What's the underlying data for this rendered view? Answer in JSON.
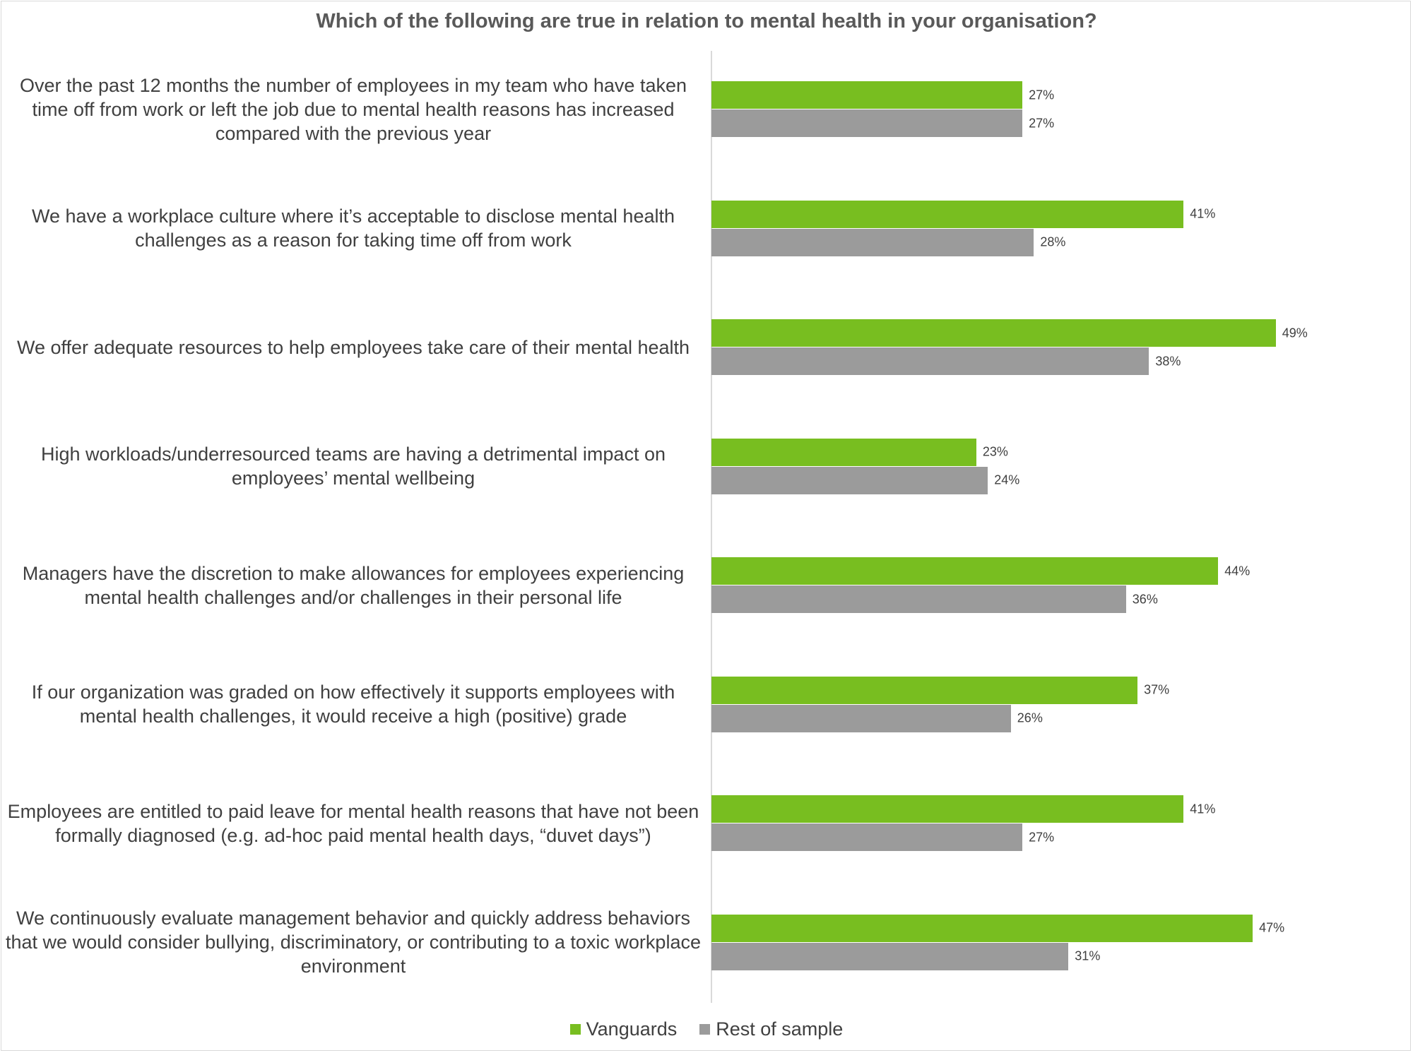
{
  "chart_data": {
    "type": "bar",
    "orientation": "horizontal",
    "title": "Which of the following are true in relation to mental health in your organisation?",
    "categories": [
      "Over the past 12 months the number of employees in my team who have taken time off from work or left the job due to mental health reasons has increased compared with the previous year",
      "We have a workplace culture where it’s acceptable to disclose mental health challenges as a reason for taking time off from work",
      "We offer adequate resources to help employees take care of their mental health",
      "High workloads/underresourced teams are having a detrimental impact on employees’ mental wellbeing",
      "Managers have the discretion to make allowances for employees experiencing mental health challenges and/or challenges in their personal life",
      "If our organization was graded on how effectively it supports employees with mental health challenges, it would receive a high (positive) grade",
      "Employees are entitled to paid leave for mental health reasons that have not been formally diagnosed (e.g. ad-hoc paid mental health days, “duvet days”)",
      "We continuously evaluate management behavior and quickly address behaviors that we would consider bullying, discriminatory, or contributing to a toxic workplace environment"
    ],
    "series": [
      {
        "name": "Vanguards",
        "color": "#78be20",
        "values": [
          27,
          41,
          49,
          23,
          44,
          37,
          41,
          47
        ]
      },
      {
        "name": "Rest of sample",
        "color": "#9b9b9b",
        "values": [
          27,
          28,
          38,
          24,
          36,
          26,
          27,
          31
        ]
      }
    ],
    "value_suffix": "%",
    "xlim": [
      0,
      60
    ],
    "grid": false,
    "legend": "bottom"
  }
}
